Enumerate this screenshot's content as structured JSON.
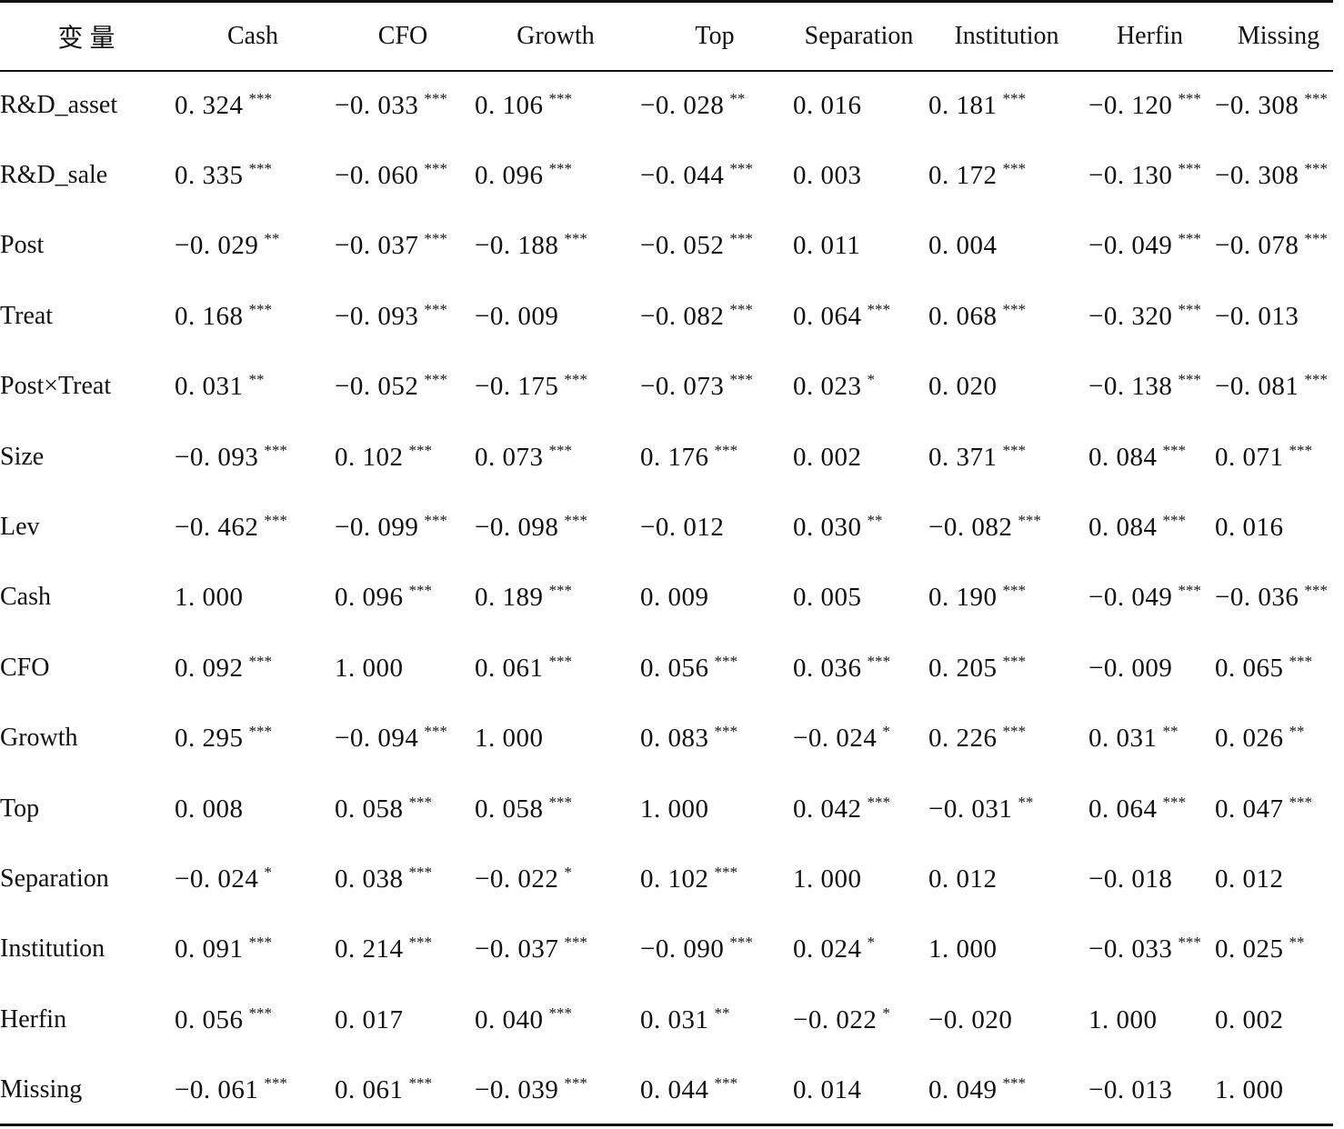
{
  "table": {
    "header_label": "变 量",
    "columns": [
      "Cash",
      "CFO",
      "Growth",
      "Top",
      "Separation",
      "Institution",
      "Herfin",
      "Missing"
    ],
    "rows": [
      {
        "label": "R&D_asset",
        "cells": [
          {
            "v": "0. 324",
            "s": "***"
          },
          {
            "v": "−0. 033",
            "s": "***"
          },
          {
            "v": "0. 106",
            "s": "***"
          },
          {
            "v": "−0. 028",
            "s": "**"
          },
          {
            "v": "0. 016",
            "s": ""
          },
          {
            "v": "0. 181",
            "s": "***"
          },
          {
            "v": "−0. 120",
            "s": "***"
          },
          {
            "v": "−0. 308",
            "s": "***"
          }
        ]
      },
      {
        "label": "R&D_sale",
        "cells": [
          {
            "v": "0. 335",
            "s": "***"
          },
          {
            "v": "−0. 060",
            "s": "***"
          },
          {
            "v": "0. 096",
            "s": "***"
          },
          {
            "v": "−0. 044",
            "s": "***"
          },
          {
            "v": "0. 003",
            "s": ""
          },
          {
            "v": "0. 172",
            "s": "***"
          },
          {
            "v": "−0. 130",
            "s": "***"
          },
          {
            "v": "−0. 308",
            "s": "***"
          }
        ]
      },
      {
        "label": "Post",
        "cells": [
          {
            "v": "−0. 029",
            "s": "**"
          },
          {
            "v": "−0. 037",
            "s": "***"
          },
          {
            "v": "−0. 188",
            "s": "***"
          },
          {
            "v": "−0. 052",
            "s": "***"
          },
          {
            "v": "0. 011",
            "s": ""
          },
          {
            "v": "0. 004",
            "s": ""
          },
          {
            "v": "−0. 049",
            "s": "***"
          },
          {
            "v": "−0. 078",
            "s": "***"
          }
        ]
      },
      {
        "label": "Treat",
        "cells": [
          {
            "v": "0. 168",
            "s": "***"
          },
          {
            "v": "−0. 093",
            "s": "***"
          },
          {
            "v": "−0. 009",
            "s": ""
          },
          {
            "v": "−0. 082",
            "s": "***"
          },
          {
            "v": "0. 064",
            "s": "***"
          },
          {
            "v": "0. 068",
            "s": "***"
          },
          {
            "v": "−0. 320",
            "s": "***"
          },
          {
            "v": "−0. 013",
            "s": ""
          }
        ]
      },
      {
        "label": "Post×Treat",
        "cells": [
          {
            "v": "0. 031",
            "s": "**"
          },
          {
            "v": "−0. 052",
            "s": "***"
          },
          {
            "v": "−0. 175",
            "s": "***"
          },
          {
            "v": "−0. 073",
            "s": "***"
          },
          {
            "v": "0. 023",
            "s": "*"
          },
          {
            "v": "0. 020",
            "s": ""
          },
          {
            "v": "−0. 138",
            "s": "***"
          },
          {
            "v": "−0. 081",
            "s": "***"
          }
        ]
      },
      {
        "label": "Size",
        "cells": [
          {
            "v": "−0. 093",
            "s": "***"
          },
          {
            "v": "0. 102",
            "s": "***"
          },
          {
            "v": "0. 073",
            "s": "***"
          },
          {
            "v": "0. 176",
            "s": "***"
          },
          {
            "v": "0. 002",
            "s": ""
          },
          {
            "v": "0. 371",
            "s": "***"
          },
          {
            "v": "0. 084",
            "s": "***"
          },
          {
            "v": "0. 071",
            "s": "***"
          }
        ]
      },
      {
        "label": "Lev",
        "cells": [
          {
            "v": "−0. 462",
            "s": "***"
          },
          {
            "v": "−0. 099",
            "s": "***"
          },
          {
            "v": "−0. 098",
            "s": "***"
          },
          {
            "v": "−0. 012",
            "s": ""
          },
          {
            "v": "0. 030",
            "s": "**"
          },
          {
            "v": "−0. 082",
            "s": "***"
          },
          {
            "v": "0. 084",
            "s": "***"
          },
          {
            "v": "0. 016",
            "s": ""
          }
        ]
      },
      {
        "label": "Cash",
        "cells": [
          {
            "v": "1. 000",
            "s": ""
          },
          {
            "v": "0. 096",
            "s": "***"
          },
          {
            "v": "0. 189",
            "s": "***"
          },
          {
            "v": "0. 009",
            "s": ""
          },
          {
            "v": "0. 005",
            "s": ""
          },
          {
            "v": "0. 190",
            "s": "***"
          },
          {
            "v": "−0. 049",
            "s": "***"
          },
          {
            "v": "−0. 036",
            "s": "***"
          }
        ]
      },
      {
        "label": "CFO",
        "cells": [
          {
            "v": "0. 092",
            "s": "***"
          },
          {
            "v": "1. 000",
            "s": ""
          },
          {
            "v": "0. 061",
            "s": "***"
          },
          {
            "v": "0. 056",
            "s": "***"
          },
          {
            "v": "0. 036",
            "s": "***"
          },
          {
            "v": "0. 205",
            "s": "***"
          },
          {
            "v": "−0. 009",
            "s": ""
          },
          {
            "v": "0. 065",
            "s": "***"
          }
        ]
      },
      {
        "label": "Growth",
        "cells": [
          {
            "v": "0. 295",
            "s": "***"
          },
          {
            "v": "−0. 094",
            "s": "***"
          },
          {
            "v": "1. 000",
            "s": ""
          },
          {
            "v": "0. 083",
            "s": "***"
          },
          {
            "v": "−0. 024",
            "s": "*"
          },
          {
            "v": "0. 226",
            "s": "***"
          },
          {
            "v": "0. 031",
            "s": "**"
          },
          {
            "v": "0. 026",
            "s": "**"
          }
        ]
      },
      {
        "label": "Top",
        "cells": [
          {
            "v": "0. 008",
            "s": ""
          },
          {
            "v": "0. 058",
            "s": "***"
          },
          {
            "v": "0. 058",
            "s": "***"
          },
          {
            "v": "1. 000",
            "s": ""
          },
          {
            "v": "0. 042",
            "s": "***"
          },
          {
            "v": "−0. 031",
            "s": "**"
          },
          {
            "v": "0. 064",
            "s": "***"
          },
          {
            "v": "0. 047",
            "s": "***"
          }
        ]
      },
      {
        "label": "Separation",
        "cells": [
          {
            "v": "−0. 024",
            "s": "*"
          },
          {
            "v": "0. 038",
            "s": "***"
          },
          {
            "v": "−0. 022",
            "s": "*"
          },
          {
            "v": "0. 102",
            "s": "***"
          },
          {
            "v": "1. 000",
            "s": ""
          },
          {
            "v": "0. 012",
            "s": ""
          },
          {
            "v": "−0. 018",
            "s": ""
          },
          {
            "v": "0. 012",
            "s": ""
          }
        ]
      },
      {
        "label": "Institution",
        "cells": [
          {
            "v": "0. 091",
            "s": "***"
          },
          {
            "v": "0. 214",
            "s": "***"
          },
          {
            "v": "−0. 037",
            "s": "***"
          },
          {
            "v": "−0. 090",
            "s": "***"
          },
          {
            "v": "0. 024",
            "s": "*"
          },
          {
            "v": "1. 000",
            "s": ""
          },
          {
            "v": "−0. 033",
            "s": "***"
          },
          {
            "v": "0. 025",
            "s": "**"
          }
        ]
      },
      {
        "label": "Herfin",
        "cells": [
          {
            "v": "0. 056",
            "s": "***"
          },
          {
            "v": "0. 017",
            "s": ""
          },
          {
            "v": "0. 040",
            "s": "***"
          },
          {
            "v": "0. 031",
            "s": "**"
          },
          {
            "v": "−0. 022",
            "s": "*"
          },
          {
            "v": "−0. 020",
            "s": ""
          },
          {
            "v": "1. 000",
            "s": ""
          },
          {
            "v": "0. 002",
            "s": ""
          }
        ]
      },
      {
        "label": "Missing",
        "cells": [
          {
            "v": "−0. 061",
            "s": "***"
          },
          {
            "v": "0. 061",
            "s": "***"
          },
          {
            "v": "−0. 039",
            "s": "***"
          },
          {
            "v": "0. 044",
            "s": "***"
          },
          {
            "v": "0. 014",
            "s": ""
          },
          {
            "v": "0. 049",
            "s": "***"
          },
          {
            "v": "−0. 013",
            "s": ""
          },
          {
            "v": "1. 000",
            "s": ""
          }
        ]
      }
    ]
  }
}
